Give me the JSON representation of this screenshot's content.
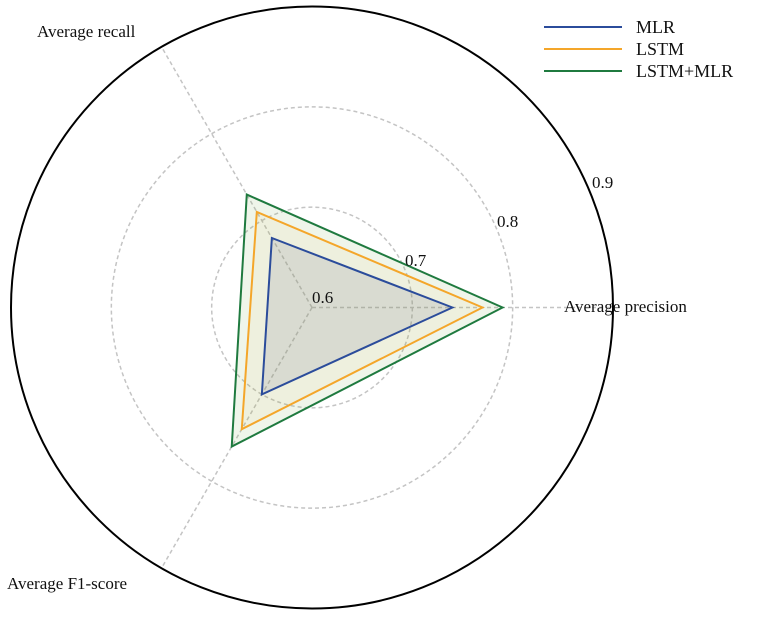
{
  "chart_data": {
    "type": "radar",
    "title": "",
    "axes": [
      "Average precision",
      "Average recall",
      "Average F1-score"
    ],
    "axis_angles_deg": [
      0,
      120,
      240
    ],
    "radial_ticks": [
      "0.6",
      "0.7",
      "0.8",
      "0.9"
    ],
    "radial_range": [
      0.6,
      0.9
    ],
    "grid": "dashed circles",
    "legend_position": "upper right",
    "series": [
      {
        "name": "MLR",
        "color": "#2b4c9b",
        "values": [
          0.74,
          0.68,
          0.7
        ]
      },
      {
        "name": "LSTM",
        "color": "#f4a62a",
        "values": [
          0.77,
          0.71,
          0.74
        ]
      },
      {
        "name": "LSTM+MLR",
        "color": "#1f7a3f",
        "values": [
          0.79,
          0.73,
          0.76
        ]
      }
    ]
  },
  "legend": {
    "items": [
      {
        "label": "MLR",
        "color": "#2b4c9b"
      },
      {
        "label": "LSTM",
        "color": "#f4a62a"
      },
      {
        "label": "LSTM+MLR",
        "color": "#1f7a3f"
      }
    ]
  }
}
